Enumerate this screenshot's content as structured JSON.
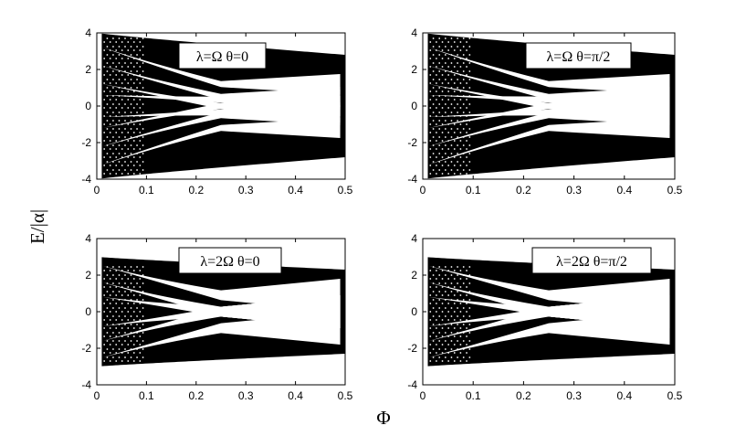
{
  "axes_labels": {
    "y": "E/|α|",
    "x": "Φ"
  },
  "chart_data": [
    {
      "type": "scatter",
      "annotation": "λ=Ω θ=0",
      "xlim": [
        0,
        0.5
      ],
      "ylim": [
        -4,
        4
      ],
      "xticks": [
        "0",
        "0.1",
        "0.2",
        "0.3",
        "0.4",
        "0.5"
      ],
      "yticks": [
        "-4",
        "-2",
        "0",
        "2",
        "4"
      ],
      "energy_max": 4
    },
    {
      "type": "scatter",
      "annotation": "λ=Ω θ=π/2",
      "xlim": [
        0,
        0.5
      ],
      "ylim": [
        -4,
        4
      ],
      "xticks": [
        "0",
        "0.1",
        "0.2",
        "0.3",
        "0.4",
        "0.5"
      ],
      "yticks": [
        "-4",
        "-2",
        "0",
        "2",
        "4"
      ],
      "energy_max": 4
    },
    {
      "type": "scatter",
      "annotation": "λ=2Ω θ=0",
      "xlim": [
        0,
        0.5
      ],
      "ylim": [
        -4,
        4
      ],
      "xticks": [
        "0",
        "0.1",
        "0.2",
        "0.3",
        "0.4",
        "0.5"
      ],
      "yticks": [
        "-4",
        "-2",
        "0",
        "2",
        "4"
      ],
      "energy_max": 3
    },
    {
      "type": "scatter",
      "annotation": "λ=2Ω θ=π/2",
      "xlim": [
        0,
        0.5
      ],
      "ylim": [
        -4,
        4
      ],
      "xticks": [
        "0",
        "0.1",
        "0.2",
        "0.3",
        "0.4",
        "0.5"
      ],
      "yticks": [
        "-4",
        "-2",
        "0",
        "2",
        "4"
      ],
      "energy_max": 3
    }
  ]
}
